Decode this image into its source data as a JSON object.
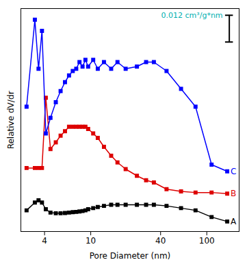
{
  "chart_data": {
    "type": "line",
    "x_label": "Pore Diameter (nm)",
    "y_label": "Relative dV/dr",
    "log": "x",
    "grid": false,
    "tick_labels": "x",
    "marker": "square",
    "xlim": [
      2.5,
      190
    ],
    "ylim": [
      0.0,
      1.0
    ],
    "xticks": [
      4,
      10,
      40,
      100
    ],
    "x": [
      2.8,
      3.3,
      3.55,
      3.8,
      4.1,
      4.5,
      5.0,
      5.5,
      6.0,
      6.5,
      7.0,
      7.5,
      8.0,
      8.5,
      9.0,
      9.5,
      10.5,
      11.5,
      13.0,
      15.0,
      17.0,
      20.0,
      25.0,
      30.0,
      35.0,
      45.0,
      60.0,
      80.0,
      110.0,
      150.0
    ],
    "series": [
      {
        "name": "A",
        "color": "#000000",
        "values": [
          0.095,
          0.13,
          0.14,
          0.13,
          0.1,
          0.085,
          0.082,
          0.082,
          0.083,
          0.085,
          0.087,
          0.088,
          0.09,
          0.092,
          0.095,
          0.1,
          0.105,
          0.11,
          0.115,
          0.12,
          0.12,
          0.12,
          0.12,
          0.12,
          0.12,
          0.115,
          0.105,
          0.095,
          0.065,
          0.045
        ]
      },
      {
        "name": "B",
        "color": "#dd0000",
        "values": [
          0.285,
          0.285,
          0.285,
          0.285,
          0.6,
          0.37,
          0.4,
          0.43,
          0.45,
          0.47,
          0.47,
          0.47,
          0.47,
          0.47,
          0.47,
          0.46,
          0.44,
          0.42,
          0.38,
          0.34,
          0.31,
          0.28,
          0.25,
          0.23,
          0.22,
          0.19,
          0.18,
          0.175,
          0.175,
          0.17
        ]
      },
      {
        "name": "C",
        "color": "#0000ff",
        "values": [
          0.56,
          0.95,
          0.73,
          0.9,
          0.44,
          0.51,
          0.58,
          0.63,
          0.67,
          0.7,
          0.72,
          0.73,
          0.76,
          0.74,
          0.77,
          0.74,
          0.77,
          0.73,
          0.76,
          0.73,
          0.76,
          0.73,
          0.74,
          0.76,
          0.76,
          0.72,
          0.64,
          0.56,
          0.3,
          0.27
        ]
      }
    ],
    "annotations": [
      {
        "text": "0.012 cm³/g*nm",
        "color": "#00b0b0",
        "scale_bar": 0.12
      }
    ]
  }
}
